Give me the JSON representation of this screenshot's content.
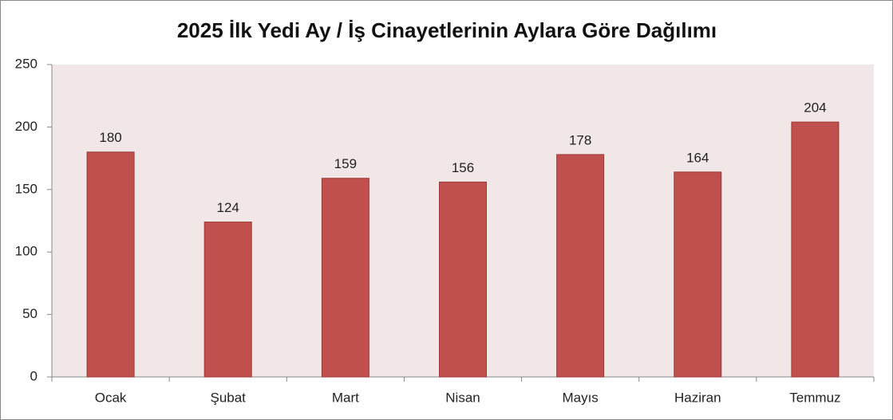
{
  "chart_data": {
    "type": "bar",
    "title": "2025 İlk Yedi Ay / İş Cinayetlerinin Aylara Göre Dağılımı",
    "categories": [
      "Ocak",
      "Şubat",
      "Mart",
      "Nisan",
      "Mayıs",
      "Haziran",
      "Temmuz"
    ],
    "values": [
      180,
      124,
      159,
      156,
      178,
      164,
      204
    ],
    "color": "#c0504d",
    "ylim": [
      0,
      250
    ],
    "yticks": [
      0,
      50,
      100,
      150,
      200,
      250
    ],
    "grid": false,
    "data_labels": true
  }
}
